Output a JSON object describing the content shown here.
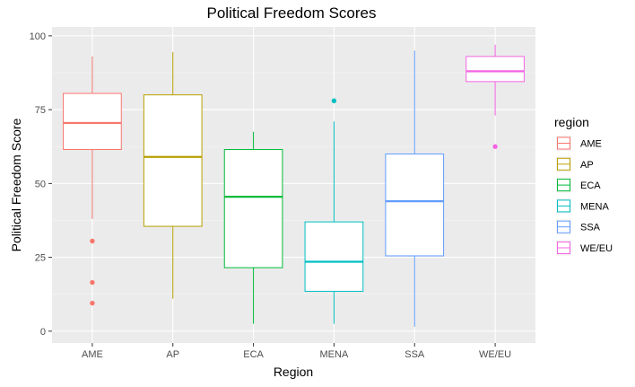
{
  "chart_data": {
    "type": "boxplot",
    "title": "Political Freedom Scores",
    "xlabel": "Region",
    "ylabel": "Political Freedom Score",
    "ylim": [
      -4,
      103
    ],
    "yticks": [
      0,
      25,
      50,
      75,
      100
    ],
    "legend": {
      "title": "region",
      "position": "right"
    },
    "categories": [
      "AME",
      "AP",
      "ECA",
      "MENA",
      "SSA",
      "WE/EU"
    ],
    "series": [
      {
        "name": "AME",
        "color": "#F8766D",
        "min": 38,
        "q1": 61.5,
        "median": 70.5,
        "q3": 80.5,
        "max": 93,
        "outliers": [
          30.5,
          16.5,
          9.5
        ]
      },
      {
        "name": "AP",
        "color": "#B79F00",
        "min": 11,
        "q1": 35.5,
        "median": 59,
        "q3": 80,
        "max": 94.5,
        "outliers": []
      },
      {
        "name": "ECA",
        "color": "#00BA38",
        "min": 2.5,
        "q1": 21.5,
        "median": 45.5,
        "q3": 61.5,
        "max": 67.5,
        "outliers": []
      },
      {
        "name": "MENA",
        "color": "#00BFC4",
        "min": 2.5,
        "q1": 13.5,
        "median": 23.5,
        "q3": 37,
        "max": 71,
        "outliers": [
          78
        ]
      },
      {
        "name": "SSA",
        "color": "#619CFF",
        "min": 1.5,
        "q1": 25.5,
        "median": 44,
        "q3": 60,
        "max": 95,
        "outliers": []
      },
      {
        "name": "WE/EU",
        "color": "#F564E3",
        "min": 73,
        "q1": 84.5,
        "median": 88,
        "q3": 93,
        "max": 97,
        "outliers": [
          62.5
        ]
      }
    ]
  }
}
